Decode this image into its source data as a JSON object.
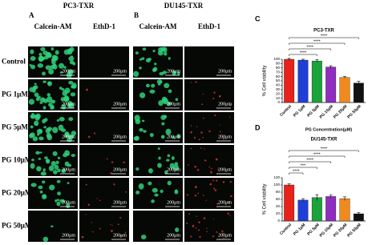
{
  "panels": [
    {
      "label": "A",
      "title": "PC3-TXR",
      "columns": [
        "Calcein-AM",
        "EthD-1"
      ]
    },
    {
      "label": "B",
      "title": "DU145-TXR",
      "columns": [
        "Calcein-AM",
        "EthD-1"
      ]
    }
  ],
  "rows": [
    "Control",
    "PG 1μM",
    "PG 5μM",
    "PG 10μM",
    "PG 20μM",
    "PG 50μM"
  ],
  "scale_bar_label": "200μm",
  "chart_data": [
    {
      "type": "bar",
      "panel_label": "C",
      "title": "PC3-TXR",
      "y_label": "% Cell viability",
      "x_label": "PG Concentration(μM)",
      "categories": [
        "Control",
        "PG 1μM",
        "PG 5μM",
        "PG 10μM",
        "PG 20μM",
        "PG 50μM"
      ],
      "values": [
        100,
        98,
        96,
        82,
        58,
        45
      ],
      "errors": [
        2,
        2,
        3,
        3,
        2,
        4
      ],
      "colors": [
        "#e8221b",
        "#1f3fd6",
        "#1aa33a",
        "#8e2dbf",
        "#f08a1c",
        "#111111"
      ],
      "ylim": [
        0,
        100
      ],
      "yticks": [
        0,
        10,
        20,
        30,
        40,
        50,
        60,
        70,
        80,
        90,
        100
      ],
      "annotations": [
        "****",
        "****",
        "****",
        "****"
      ]
    },
    {
      "type": "bar",
      "panel_label": "D",
      "title": "DU145-TXR",
      "y_label": "% Cell viability",
      "x_label": "PG Concentration(μM)",
      "categories": [
        "Control",
        "PG 1μM",
        "PG 5μM",
        "PG 10μM",
        "PG 20μM",
        "PG 50μM"
      ],
      "values": [
        100,
        58,
        65,
        68,
        62,
        20
      ],
      "errors": [
        3,
        4,
        8,
        4,
        5,
        3
      ],
      "colors": [
        "#e8221b",
        "#1f3fd6",
        "#1aa33a",
        "#8e2dbf",
        "#f08a1c",
        "#111111"
      ],
      "ylim": [
        0,
        120
      ],
      "yticks": [
        0,
        20,
        40,
        60,
        80,
        100,
        120
      ],
      "annotations": [
        "****",
        "***",
        "****",
        "****",
        "****"
      ]
    }
  ]
}
